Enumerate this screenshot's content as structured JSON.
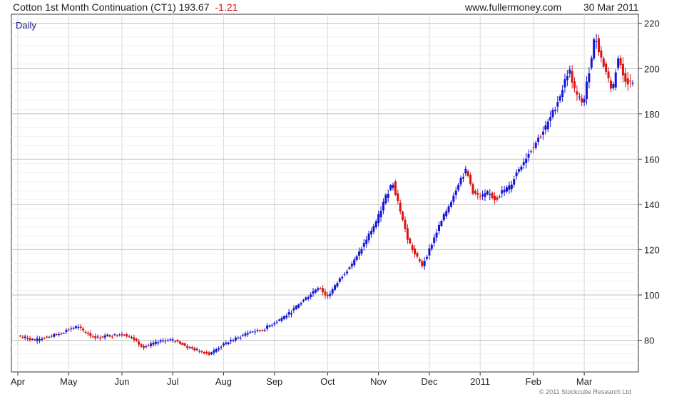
{
  "header": {
    "title": "Cotton 1st Month Continuation (CT1)",
    "last": "193.67",
    "change": "-1.21",
    "site": "www.fullermoney.com",
    "date": "30 Mar 2011"
  },
  "footer": {
    "copyright": "© 2011 Stockcube Research Ltd"
  },
  "colors": {
    "up": "#1515d8",
    "down": "#dd1111",
    "grid": "#d8d8d8",
    "axis": "#333333",
    "label": "#1a1a8c"
  },
  "chart_data": {
    "type": "candlestick",
    "interval_label": "Daily",
    "x_tick_labels": [
      "Apr",
      "May",
      "Jun",
      "Jul",
      "Aug",
      "Sep",
      "Oct",
      "Nov",
      "Dec",
      "2011",
      "Feb",
      "Mar"
    ],
    "y_ticks": [
      80,
      100,
      120,
      140,
      160,
      180,
      200,
      220
    ],
    "ylim": [
      66,
      224
    ],
    "grid": true,
    "series": [
      {
        "month": "Apr 2010",
        "close_points": [
          82,
          81,
          80,
          81,
          82,
          83
        ]
      },
      {
        "month": "May 2010",
        "close_points": [
          85,
          86,
          84,
          82,
          81,
          82,
          82
        ]
      },
      {
        "month": "Jun 2010",
        "close_points": [
          83,
          82,
          80,
          77,
          78,
          79,
          80
        ]
      },
      {
        "month": "Jul 2010",
        "close_points": [
          80,
          79,
          77,
          76,
          75,
          74,
          76
        ]
      },
      {
        "month": "Aug 2010",
        "close_points": [
          78,
          80,
          81,
          83,
          84,
          84,
          86
        ]
      },
      {
        "month": "Sep 2010",
        "close_points": [
          88,
          90,
          92,
          95,
          98,
          101,
          104
        ]
      },
      {
        "month": "Oct 2010",
        "close_points": [
          99,
          103,
          108,
          112,
          116,
          122,
          128
        ]
      },
      {
        "month": "Nov 2010",
        "close_points": [
          134,
          143,
          150,
          138,
          125,
          118,
          113
        ]
      },
      {
        "month": "Dec 2010",
        "close_points": [
          120,
          128,
          135,
          142,
          150,
          155,
          145
        ]
      },
      {
        "month": "Jan 2011",
        "close_points": [
          143,
          145,
          142,
          146,
          148,
          155,
          160
        ]
      },
      {
        "month": "Feb 2011",
        "close_points": [
          165,
          170,
          175,
          182,
          190,
          200,
          188
        ]
      },
      {
        "month": "Mar 2011",
        "close_points": [
          185,
          200,
          215,
          205,
          198,
          190,
          205,
          196,
          193.67
        ]
      }
    ]
  }
}
